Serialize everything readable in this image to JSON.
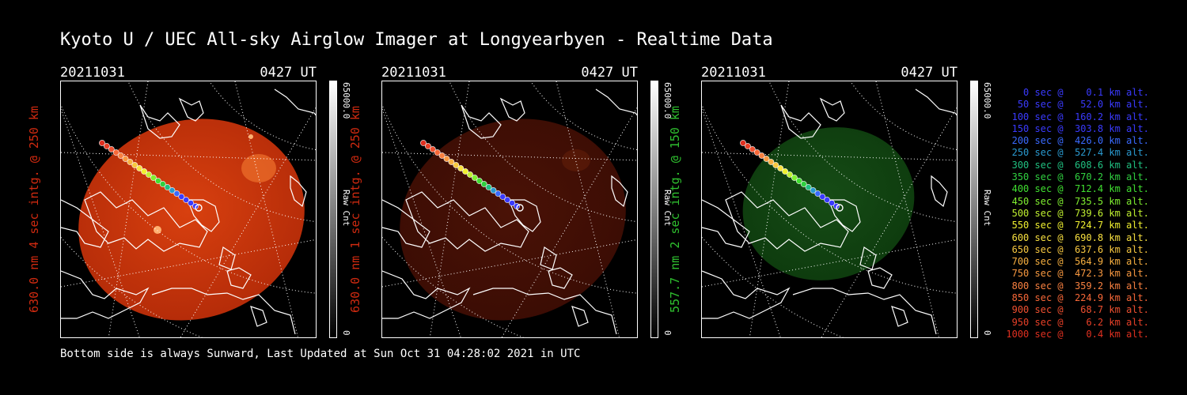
{
  "title": "Kyoto U / UEC All-sky Airglow Imager at Longyearbyen - Realtime Data",
  "footer": "Bottom side is always Sunward, Last Updated at Sun Oct 31 04:28:02 2021 in UTC",
  "panels": [
    {
      "date": "20211031",
      "time": "0427 UT",
      "label": "630.0 nm 4 sec intg. @ 250 km",
      "label_color": "#d02a10",
      "colorbar_max": "65000.0",
      "colorbar_min": "0",
      "colorbar_unit": "Raw Cnt",
      "glow_color": "#b22a08",
      "glow_inner": "#d8400f",
      "glow_opacity": 1.0
    },
    {
      "date": "20211031",
      "time": "0427 UT",
      "label": "630.0 nm 1 sec intg. @ 250 km",
      "label_color": "#d02a10",
      "colorbar_max": "65000.0",
      "colorbar_min": "0",
      "colorbar_unit": "Raw Cnt",
      "glow_color": "#3a0c04",
      "glow_inner": "#4a1206",
      "glow_opacity": 1.0
    },
    {
      "date": "20211031",
      "time": "0427 UT",
      "label": "557.7 nm 2 sec intg. @ 150 km",
      "label_color": "#2fc02f",
      "colorbar_max": "65000.0",
      "colorbar_min": "0",
      "colorbar_unit": "Raw Cnt",
      "glow_color": "#0d3a0d",
      "glow_inner": "#164c16",
      "glow_opacity": 1.0
    }
  ],
  "legend": [
    {
      "text": "   0 sec @    0.1 km alt.",
      "color": "#3a3aff"
    },
    {
      "text": "  50 sec @   52.0 km alt.",
      "color": "#3a3aff"
    },
    {
      "text": " 100 sec @  160.2 km alt.",
      "color": "#3a3aff"
    },
    {
      "text": " 150 sec @  303.8 km alt.",
      "color": "#3a3aff"
    },
    {
      "text": " 200 sec @  426.0 km alt.",
      "color": "#3a6aff"
    },
    {
      "text": " 250 sec @  527.4 km alt.",
      "color": "#2a9ad0"
    },
    {
      "text": " 300 sec @  608.6 km alt.",
      "color": "#20c080"
    },
    {
      "text": " 350 sec @  670.2 km alt.",
      "color": "#30d040"
    },
    {
      "text": " 400 sec @  712.4 km alt.",
      "color": "#40e030"
    },
    {
      "text": " 450 sec @  735.5 km alt.",
      "color": "#80f030"
    },
    {
      "text": " 500 sec @  739.6 km alt.",
      "color": "#c0f030"
    },
    {
      "text": " 550 sec @  724.7 km alt.",
      "color": "#f0f030"
    },
    {
      "text": " 600 sec @  690.8 km alt.",
      "color": "#f8e040"
    },
    {
      "text": " 650 sec @  637.6 km alt.",
      "color": "#f8c840"
    },
    {
      "text": " 700 sec @  564.9 km alt.",
      "color": "#f8b040"
    },
    {
      "text": " 750 sec @  472.3 km alt.",
      "color": "#f89840"
    },
    {
      "text": " 800 sec @  359.2 km alt.",
      "color": "#f88040"
    },
    {
      "text": " 850 sec @  224.9 km alt.",
      "color": "#f86838"
    },
    {
      "text": " 900 sec @   68.7 km alt.",
      "color": "#f05030"
    },
    {
      "text": " 950 sec @    6.2 km alt.",
      "color": "#e84028"
    },
    {
      "text": "1000 sec @    0.4 km alt.",
      "color": "#e03020"
    }
  ]
}
